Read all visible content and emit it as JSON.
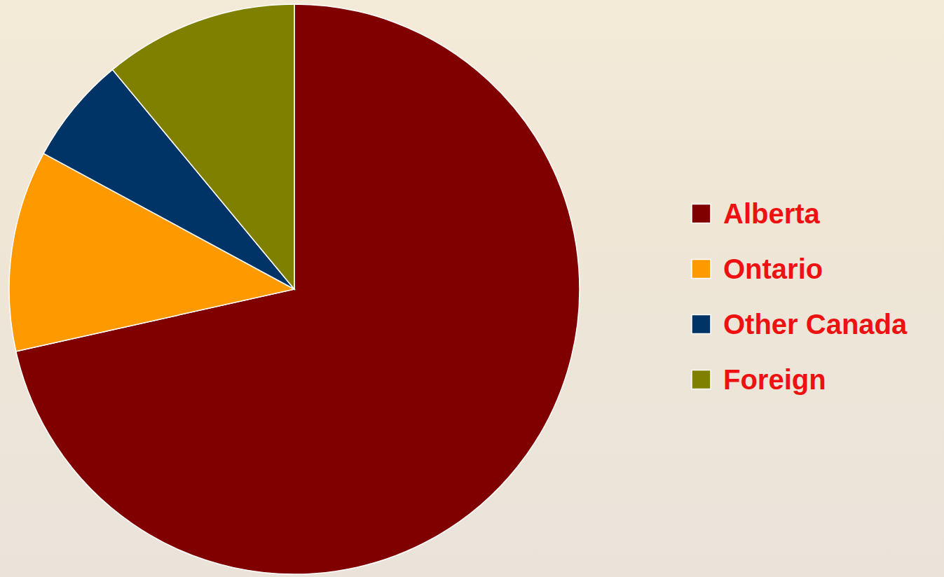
{
  "chart_data": {
    "type": "pie",
    "categories": [
      "Alberta",
      "Ontario",
      "Other Canada",
      "Foreign"
    ],
    "values": [
      71.5,
      11.4,
      6.1,
      11.0
    ],
    "colors": [
      "#800000",
      "#ff9900",
      "#003366",
      "#808000"
    ],
    "legend": "right"
  }
}
